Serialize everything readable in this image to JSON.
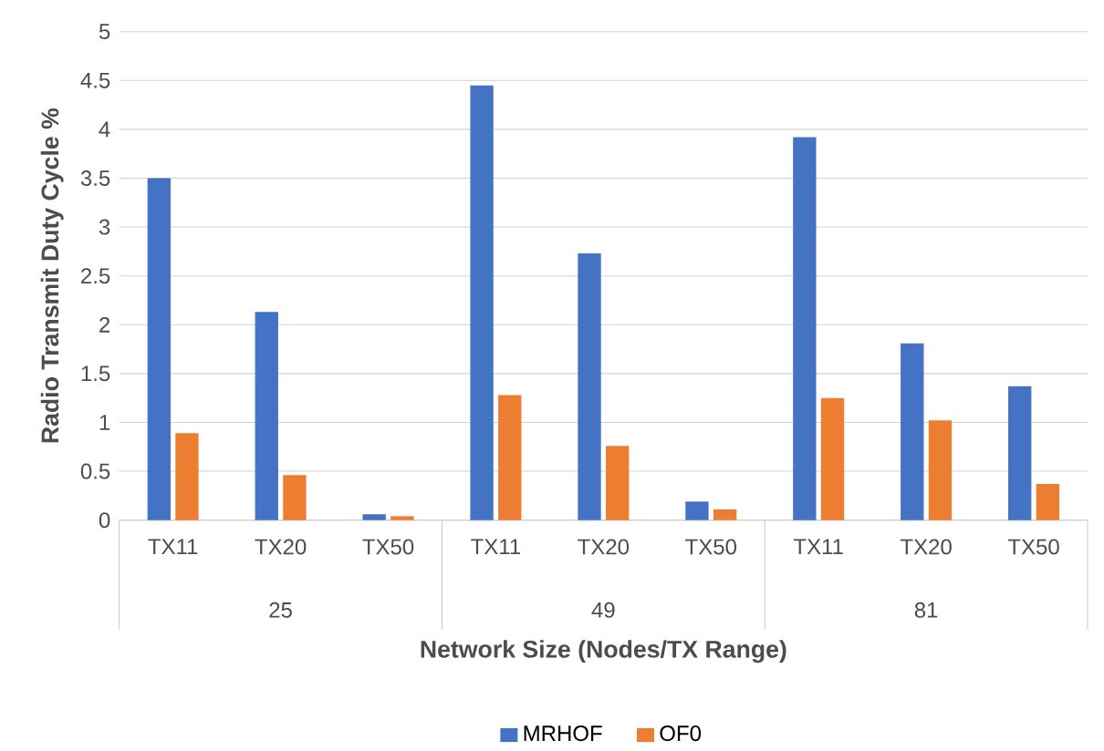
{
  "chart_data": {
    "type": "bar",
    "xlabel": "Network Size (Nodes/TX Range)",
    "ylabel": "Radio Transmit Duty Cycle %",
    "categories": [
      "TX11",
      "TX20",
      "TX50",
      "TX11",
      "TX20",
      "TX50",
      "TX11",
      "TX20",
      "TX50"
    ],
    "annotations": [
      "25",
      "49",
      "81"
    ],
    "series": [
      {
        "name": "MRHOF",
        "color": "#4472c4",
        "values": [
          3.5,
          2.13,
          0.06,
          4.45,
          2.73,
          0.19,
          3.92,
          1.81,
          1.37
        ]
      },
      {
        "name": "OF0",
        "color": "#ed7d31",
        "values": [
          0.89,
          0.46,
          0.04,
          1.28,
          0.76,
          0.11,
          1.25,
          1.02,
          0.37
        ]
      }
    ],
    "ylim": [
      0,
      5
    ],
    "yticks": [
      0,
      0.5,
      1,
      1.5,
      2,
      2.5,
      3,
      3.5,
      4,
      4.5,
      5
    ],
    "grid": "y",
    "legend": "bottom"
  }
}
